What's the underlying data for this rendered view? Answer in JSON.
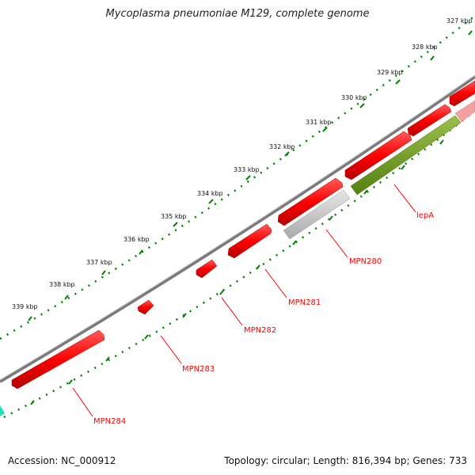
{
  "title": "Mycoplasma pneumoniae M129, complete genome",
  "footer": {
    "accession": "Accession: NC_000912",
    "summary": "Topology: circular; Length: 816,394 bp; Genes: 733"
  },
  "colors": {
    "backbone": "#7a7a7a",
    "gene_red": "#ff0000",
    "gene_gray": "#c0c0c0",
    "gene_green": "#6f9a1e",
    "gene_pink": "#f2a0a0",
    "tick_green": "#008000",
    "accent_cyan": "#20e0b0"
  },
  "ruler_labels": [
    "327 kbp",
    "328 kbp",
    "329 kbp",
    "330 kbp",
    "331 kbp",
    "332 kbp",
    "333 kbp",
    "334 kbp",
    "335 kbp",
    "336 kbp",
    "337 kbp",
    "338 kbp",
    "339 kbp"
  ],
  "gene_labels": [
    "lepA",
    "MPN280",
    "MPN281",
    "MPN282",
    "MPN283",
    "MPN284"
  ]
}
